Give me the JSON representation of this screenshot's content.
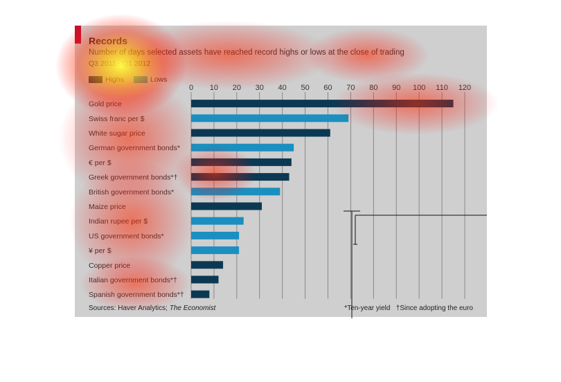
{
  "colors": {
    "highs": "#0b3954",
    "lows": "#1b8fc0",
    "panel": "#cfcfcf",
    "accent": "#c8102e",
    "grid": "#888888"
  },
  "chart_data": {
    "type": "bar",
    "orientation": "horizontal",
    "title": "Records",
    "subtitle": "Number of days selected assets have reached record highs or lows at the close of trading",
    "period": "Q3 2011 - Q1 2012",
    "legend": [
      {
        "label": "Highs",
        "color": "#0b3954"
      },
      {
        "label": "Lows",
        "color": "#1b8fc0"
      }
    ],
    "xlim": [
      0,
      120
    ],
    "ticks": [
      0,
      10,
      20,
      30,
      40,
      50,
      60,
      70,
      80,
      90,
      100,
      110,
      120
    ],
    "grid": true,
    "categories": [
      "Gold price",
      "Swiss franc per $",
      "White sugar price",
      "German government bonds*",
      "€ per $",
      "Greek government bonds*†",
      "British government bonds*",
      "Maize price",
      "Indian rupee per $",
      "US government bonds*",
      "¥ per $",
      "Copper price",
      "Italian government bonds*†",
      "Spanish government bonds*†"
    ],
    "values": [
      115,
      69,
      61,
      45,
      44,
      43,
      39,
      31,
      23,
      21,
      21,
      14,
      12,
      8
    ],
    "series_type": [
      "Highs",
      "Lows",
      "Highs",
      "Lows",
      "Highs",
      "Highs",
      "Lows",
      "Highs",
      "Lows",
      "Lows",
      "Lows",
      "Highs",
      "Highs",
      "Highs"
    ],
    "source_prefix": "Sources: Haver Analytics; ",
    "source_italic": "The Economist",
    "note1": "*Ten-year yield",
    "note2": "†Since adopting the euro"
  }
}
